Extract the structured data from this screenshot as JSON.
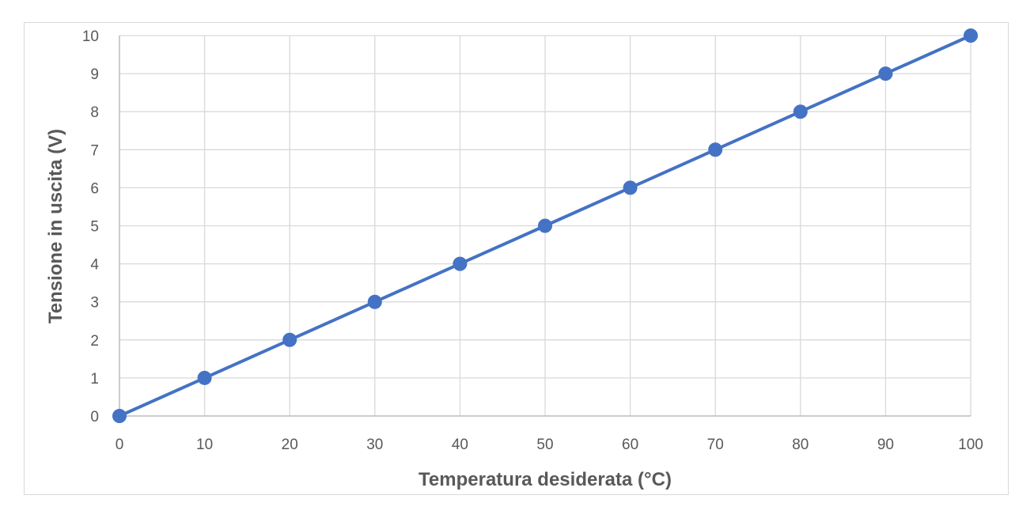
{
  "chart_data": {
    "type": "line",
    "title": "",
    "xlabel": "Temperatura desiderata (°C)",
    "ylabel": "Tensione in uscita (V)",
    "x": [
      0,
      10,
      20,
      30,
      40,
      50,
      60,
      70,
      80,
      90,
      100
    ],
    "series": [
      {
        "values": [
          0,
          1,
          2,
          3,
          4,
          5,
          6,
          7,
          8,
          9,
          10
        ],
        "color": "#4472c4",
        "marker": "circle"
      }
    ],
    "xlim": [
      0,
      100
    ],
    "ylim": [
      0,
      10
    ],
    "xticks": [
      0,
      10,
      20,
      30,
      40,
      50,
      60,
      70,
      80,
      90,
      100
    ],
    "yticks": [
      0,
      1,
      2,
      3,
      4,
      5,
      6,
      7,
      8,
      9,
      10
    ],
    "grid": true,
    "legend": "none"
  }
}
